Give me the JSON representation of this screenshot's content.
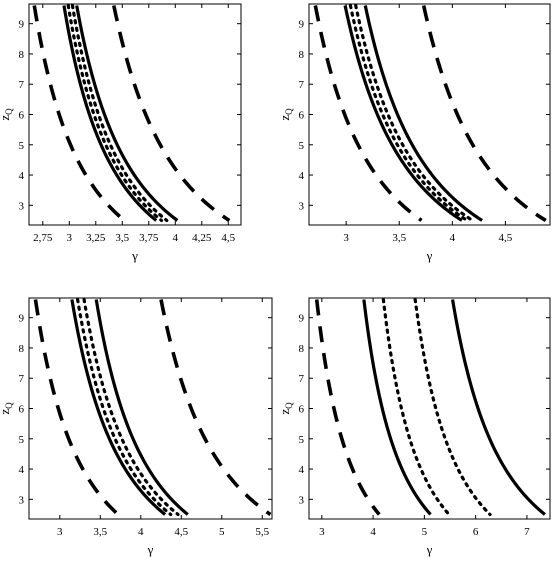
{
  "chart_data": [
    {
      "type": "line",
      "xlabel": "γ",
      "ylabel": "z",
      "ylabel_sub": "Q",
      "xlim": [
        2.62,
        4.62
      ],
      "ylim": [
        2.35,
        9.65
      ],
      "xticks": [
        {
          "v": 2.75,
          "label": "2,75"
        },
        {
          "v": 3.0,
          "label": "3"
        },
        {
          "v": 3.25,
          "label": "3,25"
        },
        {
          "v": 3.5,
          "label": "3,5"
        },
        {
          "v": 3.75,
          "label": "3,75"
        },
        {
          "v": 4.0,
          "label": "4"
        },
        {
          "v": 4.25,
          "label": "4,25"
        },
        {
          "v": 4.5,
          "label": "4,5"
        }
      ],
      "yticks": [
        {
          "v": 3,
          "label": "3"
        },
        {
          "v": 4,
          "label": "4"
        },
        {
          "v": 5,
          "label": "5"
        },
        {
          "v": 6,
          "label": "6"
        },
        {
          "v": 7,
          "label": "7"
        },
        {
          "v": 8,
          "label": "8"
        },
        {
          "v": 9,
          "label": "9"
        }
      ],
      "series": [
        {
          "style": "dashed",
          "x": [
            2.67,
            3.52
          ],
          "y": [
            9.6,
            2.5
          ]
        },
        {
          "style": "solid",
          "x": [
            2.95,
            3.82
          ],
          "y": [
            9.6,
            2.5
          ]
        },
        {
          "style": "dotted",
          "x": [
            2.99,
            3.87
          ],
          "y": [
            9.6,
            2.5
          ]
        },
        {
          "style": "dotted",
          "x": [
            3.03,
            3.92
          ],
          "y": [
            9.6,
            2.5
          ]
        },
        {
          "style": "solid",
          "x": [
            3.07,
            4.02
          ],
          "y": [
            9.6,
            2.5
          ]
        },
        {
          "style": "dashed",
          "x": [
            3.42,
            4.51
          ],
          "y": [
            9.6,
            2.5
          ]
        }
      ]
    },
    {
      "type": "line",
      "xlabel": "γ",
      "ylabel": "z",
      "ylabel_sub": "Q",
      "xlim": [
        2.65,
        4.92
      ],
      "ylim": [
        2.35,
        9.65
      ],
      "xticks": [
        {
          "v": 3.0,
          "label": "3"
        },
        {
          "v": 3.5,
          "label": "3,5"
        },
        {
          "v": 4.0,
          "label": "4"
        },
        {
          "v": 4.5,
          "label": "4,5"
        }
      ],
      "yticks": [
        {
          "v": 3,
          "label": "3"
        },
        {
          "v": 4,
          "label": "4"
        },
        {
          "v": 5,
          "label": "5"
        },
        {
          "v": 6,
          "label": "6"
        },
        {
          "v": 7,
          "label": "7"
        },
        {
          "v": 8,
          "label": "8"
        },
        {
          "v": 9,
          "label": "9"
        }
      ],
      "series": [
        {
          "style": "dashed",
          "x": [
            2.71,
            3.71
          ],
          "y": [
            9.6,
            2.5
          ]
        },
        {
          "style": "solid",
          "x": [
            2.99,
            4.09
          ],
          "y": [
            9.6,
            2.5
          ]
        },
        {
          "style": "dotted",
          "x": [
            3.04,
            4.14
          ],
          "y": [
            9.6,
            2.5
          ]
        },
        {
          "style": "dotted",
          "x": [
            3.09,
            4.19
          ],
          "y": [
            9.6,
            2.5
          ]
        },
        {
          "style": "solid",
          "x": [
            3.18,
            4.28
          ],
          "y": [
            9.6,
            2.5
          ]
        },
        {
          "style": "dashed",
          "x": [
            3.73,
            4.88
          ],
          "y": [
            9.6,
            2.5
          ]
        }
      ]
    },
    {
      "type": "line",
      "xlabel": "γ",
      "ylabel": "z",
      "ylabel_sub": "Q",
      "xlim": [
        2.62,
        5.62
      ],
      "ylim": [
        2.35,
        9.65
      ],
      "xticks": [
        {
          "v": 3.0,
          "label": "3"
        },
        {
          "v": 3.5,
          "label": "3,5"
        },
        {
          "v": 4.0,
          "label": "4"
        },
        {
          "v": 4.5,
          "label": "4,5"
        },
        {
          "v": 5.0,
          "label": "5"
        },
        {
          "v": 5.5,
          "label": "5,5"
        }
      ],
      "yticks": [
        {
          "v": 3,
          "label": "3"
        },
        {
          "v": 4,
          "label": "4"
        },
        {
          "v": 5,
          "label": "5"
        },
        {
          "v": 6,
          "label": "6"
        },
        {
          "v": 7,
          "label": "7"
        },
        {
          "v": 8,
          "label": "8"
        },
        {
          "v": 9,
          "label": "9"
        }
      ],
      "series": [
        {
          "style": "dashed",
          "x": [
            2.7,
            3.72
          ],
          "y": [
            9.6,
            2.5
          ]
        },
        {
          "style": "solid",
          "x": [
            3.15,
            4.3
          ],
          "y": [
            9.6,
            2.5
          ]
        },
        {
          "style": "dotted",
          "x": [
            3.22,
            4.37
          ],
          "y": [
            9.6,
            2.5
          ]
        },
        {
          "style": "dotted",
          "x": [
            3.3,
            4.46
          ],
          "y": [
            9.6,
            2.5
          ]
        },
        {
          "style": "solid",
          "x": [
            3.45,
            4.58
          ],
          "y": [
            9.6,
            2.5
          ]
        },
        {
          "style": "dashed",
          "x": [
            4.25,
            5.6
          ],
          "y": [
            9.6,
            2.5
          ]
        }
      ]
    },
    {
      "type": "line",
      "xlabel": "γ",
      "ylabel": "z",
      "ylabel_sub": "Q",
      "xlim": [
        2.75,
        7.45
      ],
      "ylim": [
        2.35,
        9.65
      ],
      "xticks": [
        {
          "v": 3,
          "label": "3"
        },
        {
          "v": 4,
          "label": "4"
        },
        {
          "v": 5,
          "label": "5"
        },
        {
          "v": 6,
          "label": "6"
        },
        {
          "v": 7,
          "label": "7"
        }
      ],
      "yticks": [
        {
          "v": 3,
          "label": "3"
        },
        {
          "v": 4,
          "label": "4"
        },
        {
          "v": 5,
          "label": "5"
        },
        {
          "v": 6,
          "label": "6"
        },
        {
          "v": 7,
          "label": "7"
        },
        {
          "v": 8,
          "label": "8"
        },
        {
          "v": 9,
          "label": "9"
        }
      ],
      "series": [
        {
          "style": "dashed",
          "x": [
            2.9,
            4.12
          ],
          "y": [
            9.6,
            2.5
          ]
        },
        {
          "style": "solid",
          "x": [
            3.82,
            5.12
          ],
          "y": [
            9.6,
            2.5
          ]
        },
        {
          "style": "dotted",
          "x": [
            4.2,
            5.48
          ],
          "y": [
            9.6,
            2.5
          ]
        },
        {
          "style": "dotted",
          "x": [
            4.82,
            6.28
          ],
          "y": [
            9.6,
            2.5
          ]
        },
        {
          "style": "solid",
          "x": [
            5.55,
            7.35
          ],
          "y": [
            9.6,
            2.5
          ]
        }
      ]
    }
  ]
}
